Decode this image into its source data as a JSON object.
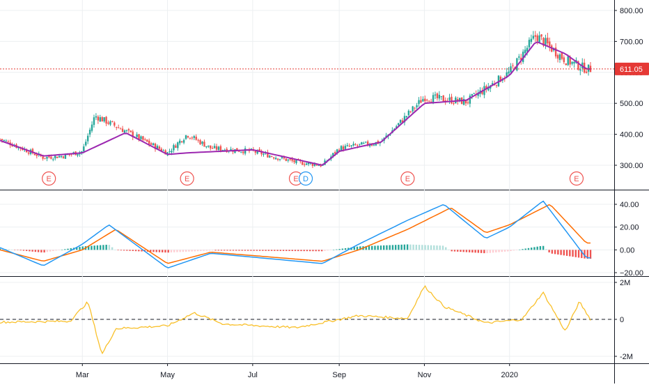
{
  "colors": {
    "up": "#26a69a",
    "down": "#ef5350",
    "ma": "#9c27b0",
    "price_line": "#e53935",
    "macd": "#2196f3",
    "signal": "#ff6d00",
    "hist_up": "#26a69a",
    "hist_down": "#ef5350",
    "hist_up_light": "#b2dfdb",
    "hist_down_light": "#ffcdd2",
    "osc": "#f9c02a",
    "grid": "#eceff1",
    "axis": "#131722",
    "earnings": "#ef5350",
    "dividend": "#2196f3"
  },
  "x_axis": {
    "labels": [
      "Mar",
      "May",
      "Jul",
      "Sep",
      "Nov",
      "2020"
    ]
  },
  "price_panel": {
    "y_ticks": [
      "800.00",
      "700.00",
      "600.00",
      "500.00",
      "400.00",
      "300.00"
    ],
    "last_price_label": "611.05",
    "events": [
      "E",
      "E",
      "E",
      "D",
      "E",
      "E"
    ]
  },
  "macd_panel": {
    "y_ticks": [
      "40.00",
      "20.00",
      "0.00",
      "−20.00"
    ]
  },
  "osc_panel": {
    "y_ticks": [
      "2M",
      "0",
      "-2M"
    ]
  },
  "chart_data": [
    {
      "type": "candlestick",
      "x_labels": [
        "Mar",
        "May",
        "Jul",
        "Sep",
        "Nov",
        "2020"
      ],
      "ylim": [
        270,
        810
      ],
      "last_price": 611.05,
      "series": [
        {
          "name": "close",
          "x": [
            "2019-01-01",
            "2019-02-01",
            "2019-02-15",
            "2019-03-01",
            "2019-03-10",
            "2019-04-01",
            "2019-05-01",
            "2019-05-15",
            "2019-06-01",
            "2019-07-01",
            "2019-08-01",
            "2019-08-20",
            "2019-09-01",
            "2019-10-01",
            "2019-11-01",
            "2019-12-01",
            "2020-01-01",
            "2020-01-20",
            "2020-02-10",
            "2020-02-25"
          ],
          "values": [
            385,
            325,
            330,
            345,
            460,
            410,
            340,
            400,
            355,
            345,
            310,
            300,
            355,
            375,
            520,
            505,
            600,
            720,
            640,
            611
          ]
        },
        {
          "name": "moving average",
          "x": [
            "2019-01-01",
            "2019-02-01",
            "2019-03-01",
            "2019-04-01",
            "2019-05-01",
            "2019-05-15",
            "2019-07-01",
            "2019-08-20",
            "2019-09-01",
            "2019-10-01",
            "2019-11-01",
            "2019-12-01",
            "2020-01-01",
            "2020-01-20",
            "2020-02-10",
            "2020-02-25"
          ],
          "values": [
            380,
            330,
            340,
            405,
            335,
            340,
            350,
            300,
            345,
            375,
            500,
            510,
            590,
            700,
            660,
            611
          ]
        }
      ],
      "events": [
        "E",
        "E",
        "E",
        "D",
        "E",
        "E"
      ]
    },
    {
      "type": "line",
      "ylim": [
        -22,
        46
      ],
      "y_ticks": [
        40,
        20,
        0,
        -20
      ],
      "series": [
        {
          "name": "",
          "x": [
            "2019-01-01",
            "2019-02-01",
            "2019-03-01",
            "2019-03-20",
            "2019-05-01",
            "2019-06-01",
            "2019-08-20",
            "2019-09-15",
            "2019-10-20",
            "2019-11-15",
            "2019-12-15",
            "2020-01-01",
            "2020-01-25",
            "2020-02-25"
          ],
          "values": [
            2,
            -14,
            5,
            22,
            -16,
            -3,
            -12,
            5,
            26,
            40,
            10,
            20,
            43,
            -7
          ]
        },
        {
          "name": "",
          "x": [
            "2019-01-01",
            "2019-02-01",
            "2019-03-01",
            "2019-03-25",
            "2019-05-01",
            "2019-06-01",
            "2019-08-20",
            "2019-09-15",
            "2019-10-20",
            "2019-11-20",
            "2019-12-15",
            "2020-01-01",
            "2020-01-30",
            "2020-02-25"
          ],
          "values": [
            0,
            -10,
            0,
            18,
            -12,
            -2,
            -10,
            0,
            18,
            37,
            15,
            22,
            40,
            6
          ]
        }
      ]
    },
    {
      "type": "line",
      "ylim": [
        -2.3,
        2.0
      ],
      "y_ticks": [
        "2M",
        "0",
        "-2M"
      ],
      "series": [
        {
          "name": "",
          "x": [
            "2019-01-01",
            "2019-02-20",
            "2019-03-05",
            "2019-03-15",
            "2019-03-25",
            "2019-05-01",
            "2019-05-20",
            "2019-06-10",
            "2019-08-01",
            "2019-09-15",
            "2019-10-20",
            "2019-11-01",
            "2019-11-15",
            "2019-12-15",
            "2020-01-10",
            "2020-01-25",
            "2020-02-10",
            "2020-02-20",
            "2020-02-28"
          ],
          "values": [
            -0.15,
            -0.1,
            0.95,
            -1.9,
            -0.5,
            -0.35,
            0.35,
            -0.25,
            -0.45,
            0.2,
            0.05,
            1.8,
            0.7,
            -0.2,
            0.0,
            1.45,
            -0.65,
            0.95,
            0.0
          ]
        }
      ]
    }
  ]
}
